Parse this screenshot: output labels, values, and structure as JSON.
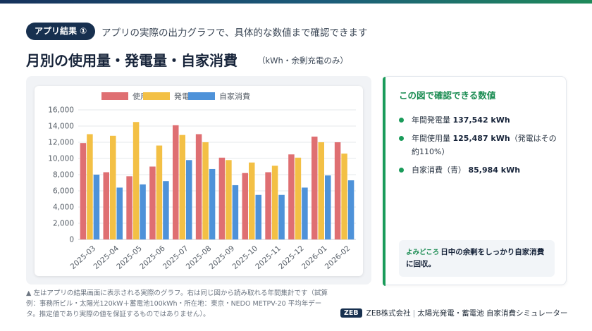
{
  "header": {
    "pill": "アプリ結果 ①",
    "subtitle": "アプリの実際の出力グラフで、具体的な数値まで確認できます",
    "title": "月別の使用量・発電量・自家消費",
    "title_note": "（kWh・余剰充電のみ）"
  },
  "chart_data": {
    "type": "bar",
    "title": "",
    "xlabel": "",
    "ylabel": "",
    "ylim": [
      0,
      16000
    ],
    "yticks": [
      "0",
      "2,000",
      "4,000",
      "6,000",
      "8,000",
      "10,000",
      "12,000",
      "14,000",
      "16,000"
    ],
    "grid": true,
    "legend_position": "top",
    "categories": [
      "2025-03",
      "2025-04",
      "2025-05",
      "2025-06",
      "2025-07",
      "2025-08",
      "2025-09",
      "2025-10",
      "2025-11",
      "2025-12",
      "2026-01",
      "2026-02"
    ],
    "series": [
      {
        "name": "使用量",
        "color": "#df6f72",
        "values": [
          11900,
          8300,
          7800,
          9000,
          14100,
          13000,
          10100,
          8200,
          8300,
          10500,
          12700,
          12000
        ]
      },
      {
        "name": "発電量",
        "color": "#f3c045",
        "values": [
          13000,
          12800,
          14500,
          11600,
          12900,
          12000,
          9800,
          9500,
          9100,
          10100,
          12000,
          10600
        ]
      },
      {
        "name": "自家消費",
        "color": "#4e92d9",
        "values": [
          8000,
          6400,
          6800,
          7200,
          9800,
          8700,
          6700,
          5500,
          5500,
          6400,
          7900,
          7300
        ]
      }
    ]
  },
  "info": {
    "title": "この図で確認できる数値",
    "items": [
      {
        "label": "年間発電量",
        "value": "137,542 kWh",
        "suffix": ""
      },
      {
        "label": "年間使用量",
        "value": "125,487 kWh",
        "suffix": "（発電はその約110%）"
      },
      {
        "label": "自家消費（青）",
        "value": "85,984 kWh",
        "suffix": ""
      }
    ],
    "hint_label": "よみどころ",
    "hint_text": "日中の余剰をしっかり自家消費に回収。"
  },
  "footnote": "▲ 左はアプリの結果画面に表示される実際のグラフ。右は同じ図から読み取れる年間集計です（試算例：事務所ビル・太陽光120kW＋蓄電池100kWh・所在地：東京・NEDO METPV-20 平均年データ。推定値であり実際の値を保証するものではありません）。",
  "brand": {
    "logo": "ZEB",
    "company": "ZEB株式会社",
    "product": "太陽光発電・蓄電池 自家消費シミュレーター"
  },
  "colors": {
    "accent_green": "#1a9b5a",
    "navy": "#17304f"
  }
}
